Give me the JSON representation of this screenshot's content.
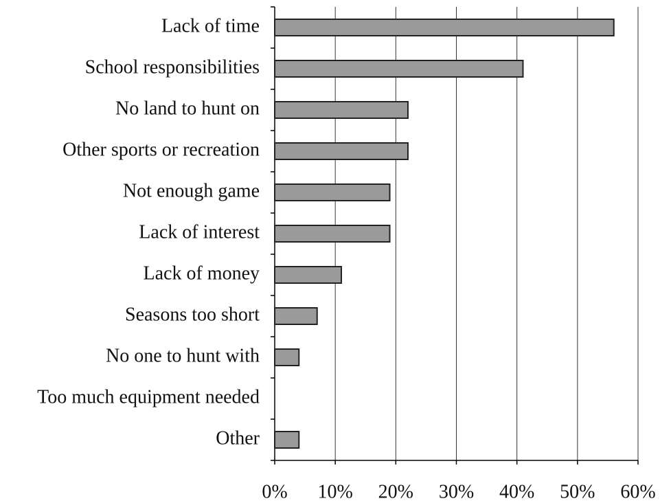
{
  "chart_data": {
    "type": "bar",
    "orientation": "horizontal",
    "categories": [
      "Lack of time",
      "School responsibilities",
      "No land to hunt on",
      "Other sports or recreation",
      "Not enough game",
      "Lack of interest",
      "Lack of money",
      "Seasons too short",
      "No one to hunt with",
      "Too much equipment needed",
      "Other"
    ],
    "values": [
      56,
      41,
      22,
      22,
      19,
      19,
      11,
      7,
      4,
      0,
      4
    ],
    "color": "#9a9a9a",
    "xlim": [
      0,
      60
    ],
    "xticks": [
      {
        "value": 0,
        "label": "0%"
      },
      {
        "value": 10,
        "label": "10%"
      },
      {
        "value": 20,
        "label": "20%"
      },
      {
        "value": 30,
        "label": "30%"
      },
      {
        "value": 40,
        "label": "40%"
      },
      {
        "value": 50,
        "label": "50%"
      },
      {
        "value": 60,
        "label": "60%"
      }
    ],
    "grid": true
  }
}
